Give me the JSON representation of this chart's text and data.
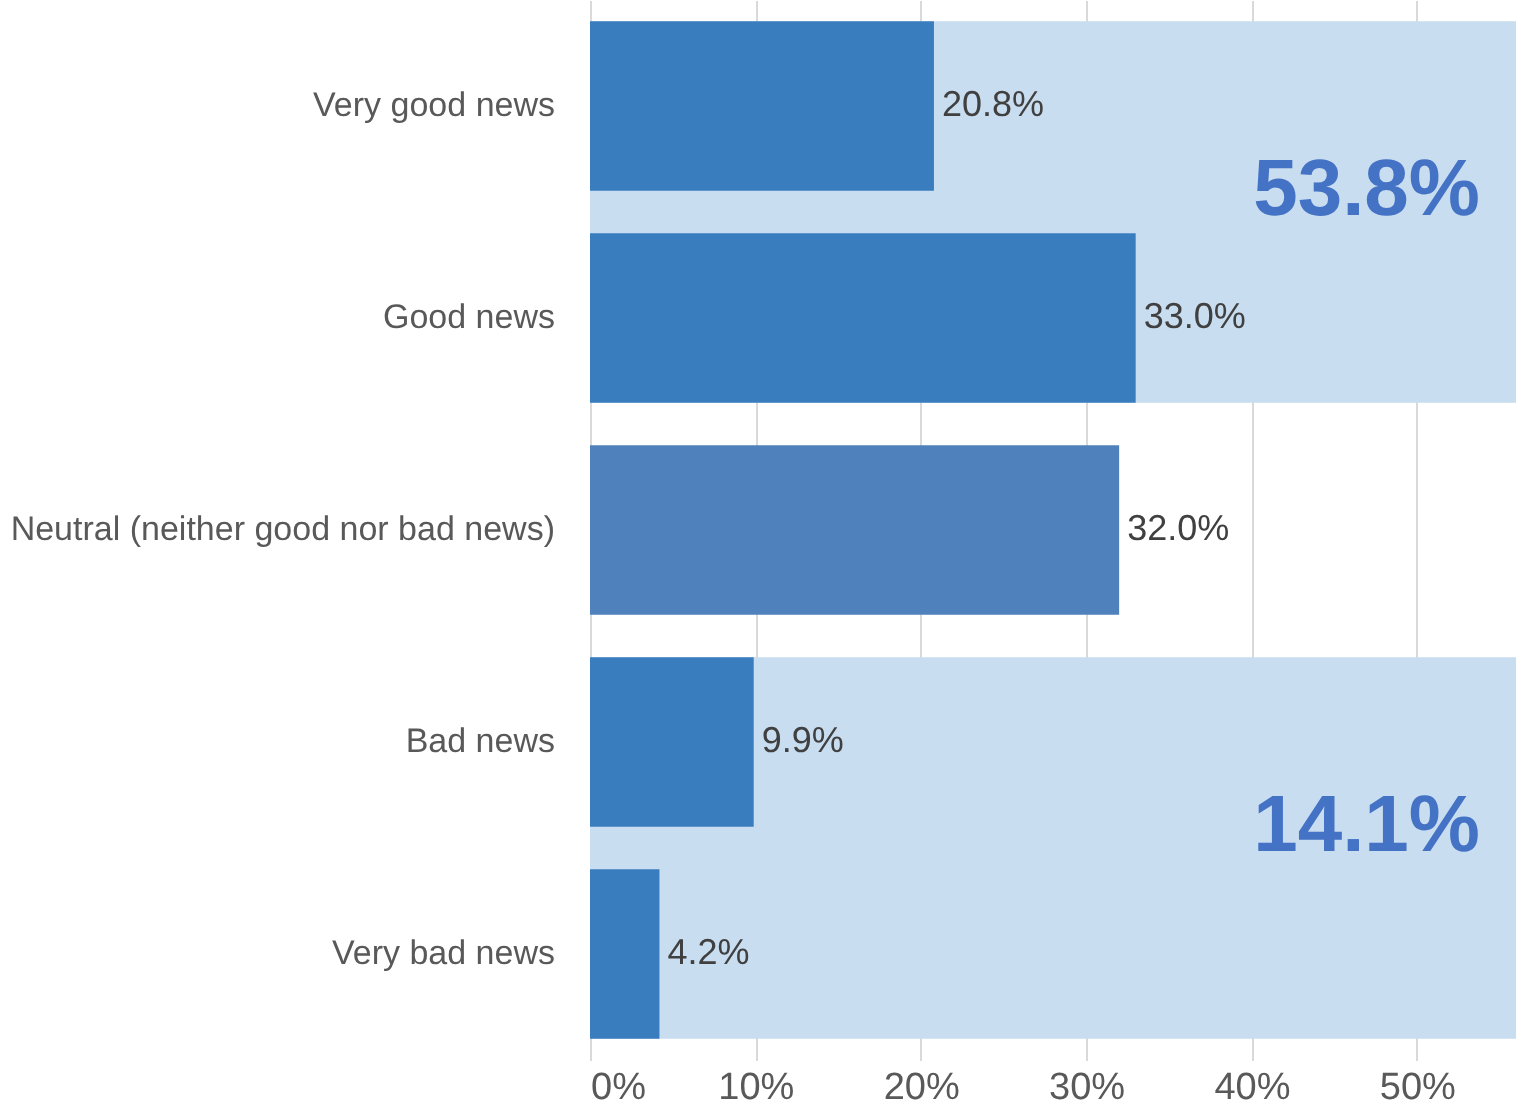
{
  "chart_data": {
    "type": "bar",
    "orientation": "horizontal",
    "categories": [
      "Very good news",
      "Good news",
      "Neutral (neither good nor bad news)",
      "Bad news",
      "Very bad news"
    ],
    "values": [
      20.8,
      33.0,
      32.0,
      9.9,
      4.2
    ],
    "colors": [
      "#3a7dbf",
      "#3a7dbf",
      "#4f81bd",
      "#3a7dbf",
      "#3a7dbf"
    ],
    "value_labels": [
      "20.8%",
      "33.0%",
      "32.0%",
      "9.9%",
      "4.2%"
    ],
    "xlim": [
      0,
      56
    ],
    "xticks": [
      {
        "value": 0,
        "label": "0%"
      },
      {
        "value": 10,
        "label": "10%"
      },
      {
        "value": 20,
        "label": "20%"
      },
      {
        "value": 30,
        "label": "30%"
      },
      {
        "value": 40,
        "label": "40%"
      },
      {
        "value": 50,
        "label": "50%"
      }
    ],
    "grid": "x",
    "bands": [
      {
        "axis": "y",
        "from": "Very good news",
        "to": "Good news",
        "label": "53.8%",
        "color": "#c9ddf0"
      },
      {
        "axis": "y",
        "from": "Bad news",
        "to": "Very bad news",
        "label": "14.1%",
        "color": "#c9ddf0"
      }
    ]
  }
}
